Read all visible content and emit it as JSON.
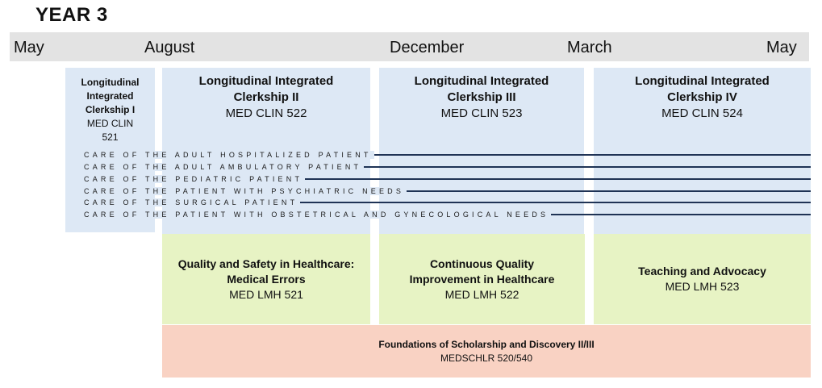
{
  "title": "YEAR 3",
  "months": [
    "May",
    "August",
    "December",
    "March",
    "May"
  ],
  "clerkships": [
    {
      "title": "Longitudinal Integrated Clerkship I",
      "code": "MED CLIN 521"
    },
    {
      "title": "Longitudinal Integrated Clerkship II",
      "code": "MED CLIN 522"
    },
    {
      "title": "Longitudinal Integrated Clerkship III",
      "code": "MED CLIN 523"
    },
    {
      "title": "Longitudinal Integrated Clerkship IV",
      "code": "MED CLIN 524"
    }
  ],
  "themes": [
    "CARE OF THE ADULT HOSPITALIZED PATIENT",
    "CARE OF THE ADULT AMBULATORY PATIENT",
    "CARE OF THE PEDIATRIC PATIENT",
    "CARE OF THE PATIENT WITH PSYCHIATRIC NEEDS",
    "CARE OF THE SURGICAL PATIENT",
    "CARE OF THE PATIENT WITH OBSTETRICAL AND GYNECOLOGICAL NEEDS"
  ],
  "lmh": [
    {
      "title": "Quality and Safety in Healthcare: Medical Errors",
      "code": "MED LMH 521"
    },
    {
      "title": "Continuous Quality Improvement in Healthcare",
      "code": "MED LMH 522"
    },
    {
      "title": "Teaching and Advocacy",
      "code": "MED LMH 523"
    }
  ],
  "scholarship": {
    "title": "Foundations of Scholarship and Discovery II/III",
    "code": "MEDSCHLR 520/540"
  },
  "colors": {
    "clerkship": "#dde8f5",
    "lmh": "#e7f3c4",
    "scholarship": "#f9d2c3",
    "month_bar": "#e3e3e3",
    "theme_line": "#1f3355"
  }
}
